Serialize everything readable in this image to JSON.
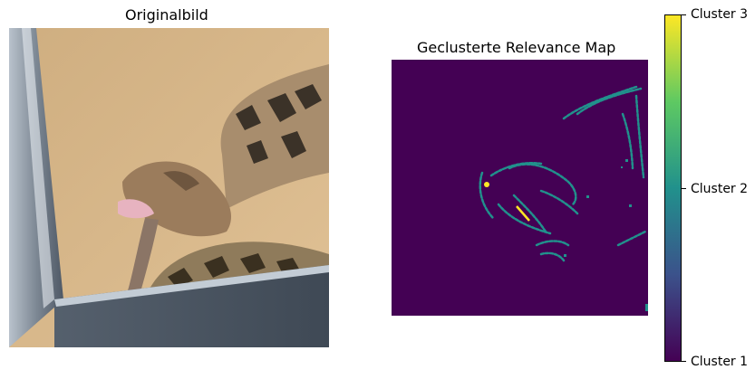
{
  "titles": {
    "left": "Originalbild",
    "right": "Geclusterte Relevance Map"
  },
  "colorbar": {
    "ticks": [
      "Cluster 1",
      "Cluster 2",
      "Cluster 3"
    ],
    "colors": {
      "cluster1": "#440154",
      "cluster2": "#21918c",
      "cluster3": "#fde725"
    }
  },
  "colors": {
    "background_box": "#d8b88a",
    "box_wall": "#4d5764",
    "snake_light": "#a88d6d",
    "snake_dark": "#3b3228"
  }
}
